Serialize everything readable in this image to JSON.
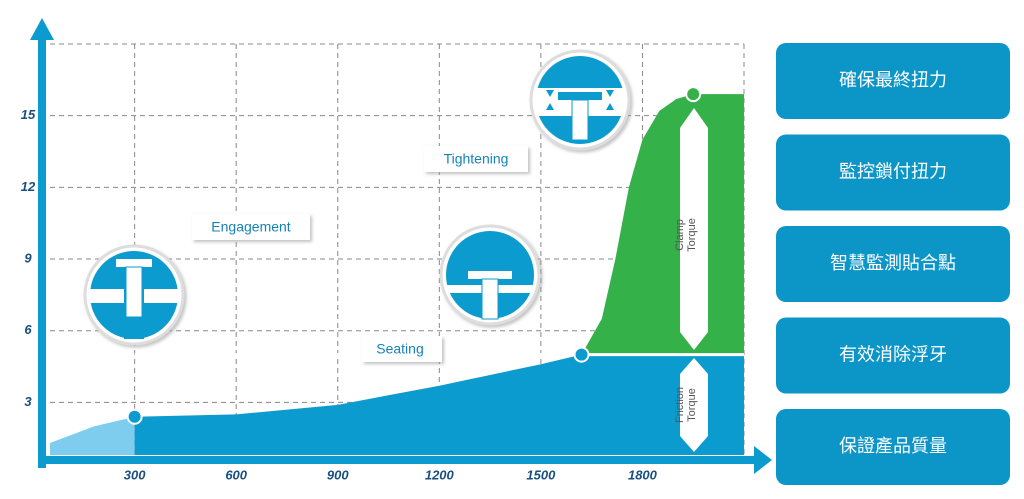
{
  "chart_data": {
    "type": "area",
    "xlim": [
      50,
      2100
    ],
    "ylim": [
      0.8,
      18
    ],
    "xticks": [
      300,
      600,
      900,
      1200,
      1500,
      1800
    ],
    "yticks": [
      3,
      6,
      9,
      12,
      15
    ],
    "grid": true,
    "seating_torque": 5,
    "series": [
      {
        "color": "#7fcdee",
        "x": [
          50,
          180,
          300
        ],
        "values": [
          1.3,
          2.0,
          2.4
        ]
      },
      {
        "color": "#0b9bce",
        "upper_color": "#35b14a",
        "x": [
          300,
          600,
          900,
          1200,
          1500,
          1620,
          1680,
          1720,
          1760,
          1800,
          1850,
          1900,
          1950,
          2100
        ],
        "values": [
          2.4,
          2.5,
          2.9,
          3.7,
          4.6,
          5.0,
          6.5,
          9.0,
          12.0,
          14.0,
          15.2,
          15.7,
          15.9,
          15.9
        ]
      }
    ],
    "annotations": {
      "engagement": "Engagement",
      "seating": "Seating",
      "tightening": "Tightening",
      "clamp": "Clamp Torque",
      "friction": "Friction Torque"
    }
  },
  "side_panel": {
    "items": [
      "確保最終扭力",
      "監控鎖付扭力",
      "智慧監測貼合點",
      "有效消除浮牙",
      "保證產品質量"
    ]
  }
}
